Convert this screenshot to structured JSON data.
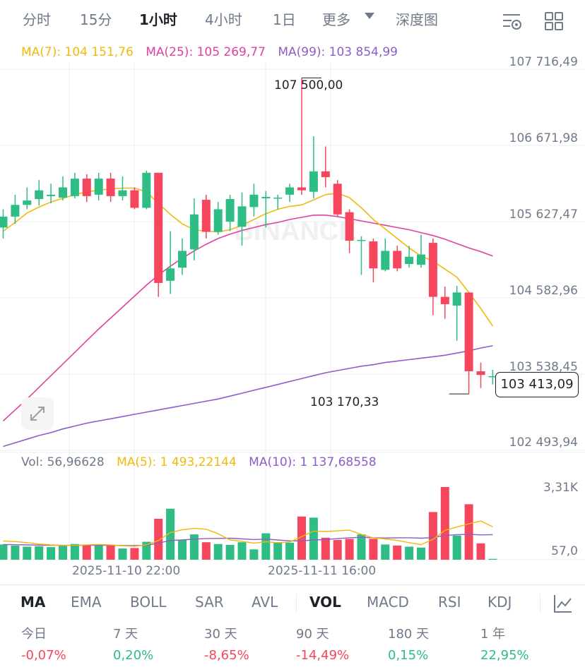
{
  "timeframes": [
    {
      "label": "分时",
      "active": false
    },
    {
      "label": "15分",
      "active": false
    },
    {
      "label": "1小时",
      "active": true
    },
    {
      "label": "4小时",
      "active": false
    },
    {
      "label": "1日",
      "active": false
    },
    {
      "label": "更多",
      "active": false
    },
    {
      "label": "深度图",
      "active": false
    }
  ],
  "colors": {
    "up": "#2ebd85",
    "down": "#f6465d",
    "ma7": "#f0b90b",
    "ma25": "#e040a0",
    "ma99": "#8e5cc8",
    "grid": "#eaecef",
    "muted": "#707a8a"
  },
  "ma_legend": {
    "ma7": "MA(7): 104 151,76",
    "ma25": "MA(25): 105 269,77",
    "ma99": "MA(99): 103 854,99"
  },
  "price_axis": [
    "107 716,49",
    "106 671,98",
    "105 627,47",
    "104 582,96",
    "103 538,45",
    "102 493,94"
  ],
  "current_price": "103 413,09",
  "high_label": "107 500,00",
  "low_label": "103 170,33",
  "watermark": "BINANCE",
  "vol_legend": {
    "vol": "Vol: 56,96628",
    "ma5": "MA(5): 1 493,22144",
    "ma10": "MA(10): 1 137,68558"
  },
  "vol_axis": [
    "3,31K",
    "57,0"
  ],
  "dates": [
    "2025-11-10 22:00",
    "2025-11-11 16:00"
  ],
  "indicators": [
    {
      "label": "MA",
      "active": true
    },
    {
      "label": "EMA",
      "active": false
    },
    {
      "label": "BOLL",
      "active": false
    },
    {
      "label": "SAR",
      "active": false
    },
    {
      "label": "AVL",
      "active": false
    },
    {
      "label": "VOL",
      "active": true
    },
    {
      "label": "MACD",
      "active": false
    },
    {
      "label": "RSI",
      "active": false
    },
    {
      "label": "KDJ",
      "active": false
    }
  ],
  "performance": [
    {
      "label": "今日",
      "value": "-0,07%",
      "up": false
    },
    {
      "label": "7 天",
      "value": "0,20%",
      "up": true
    },
    {
      "label": "30 天",
      "value": "-8,65%",
      "up": false
    },
    {
      "label": "90 天",
      "value": "-14,49%",
      "up": false
    },
    {
      "label": "180 天",
      "value": "0,15%",
      "up": true
    },
    {
      "label": "1 年",
      "value": "22,95%",
      "up": true
    }
  ],
  "chart_data": {
    "type": "candlestick",
    "price_range": [
      102493.94,
      107716.49
    ],
    "volume_range": [
      57.0,
      3310
    ],
    "candles": [
      {
        "o": 105450,
        "c": 105600,
        "h": 105700,
        "l": 105300,
        "v": 700
      },
      {
        "o": 105600,
        "c": 105760,
        "h": 105900,
        "l": 105500,
        "v": 650
      },
      {
        "o": 105760,
        "c": 105820,
        "h": 106000,
        "l": 105700,
        "v": 600
      },
      {
        "o": 105840,
        "c": 105960,
        "h": 106100,
        "l": 105750,
        "v": 620
      },
      {
        "o": 105880,
        "c": 105900,
        "h": 106050,
        "l": 105780,
        "v": 580
      },
      {
        "o": 105860,
        "c": 106000,
        "h": 106150,
        "l": 105820,
        "v": 640
      },
      {
        "o": 105880,
        "c": 106120,
        "h": 106200,
        "l": 105850,
        "v": 720
      },
      {
        "o": 106120,
        "c": 105880,
        "h": 106180,
        "l": 105800,
        "v": 680
      },
      {
        "o": 105900,
        "c": 106120,
        "h": 106200,
        "l": 105820,
        "v": 700
      },
      {
        "o": 106120,
        "c": 105880,
        "h": 106200,
        "l": 105800,
        "v": 660
      },
      {
        "o": 105880,
        "c": 105960,
        "h": 106150,
        "l": 105820,
        "v": 520
      },
      {
        "o": 105960,
        "c": 105720,
        "h": 106000,
        "l": 105700,
        "v": 540
      },
      {
        "o": 105720,
        "c": 106200,
        "h": 106230,
        "l": 105700,
        "v": 820
      },
      {
        "o": 106200,
        "c": 104690,
        "h": 106200,
        "l": 104500,
        "v": 1850
      },
      {
        "o": 104720,
        "c": 104890,
        "h": 105400,
        "l": 104540,
        "v": 2300
      },
      {
        "o": 104900,
        "c": 105130,
        "h": 105300,
        "l": 104800,
        "v": 900
      },
      {
        "o": 105150,
        "c": 105630,
        "h": 105850,
        "l": 105000,
        "v": 1150
      },
      {
        "o": 105830,
        "c": 105390,
        "h": 105900,
        "l": 105300,
        "v": 800
      },
      {
        "o": 105390,
        "c": 105700,
        "h": 105800,
        "l": 105350,
        "v": 720
      },
      {
        "o": 105530,
        "c": 105840,
        "h": 105900,
        "l": 105400,
        "v": 680
      },
      {
        "o": 105460,
        "c": 105740,
        "h": 105930,
        "l": 105200,
        "v": 800
      },
      {
        "o": 105730,
        "c": 105900,
        "h": 106050,
        "l": 105600,
        "v": 480
      },
      {
        "o": 105850,
        "c": 105870,
        "h": 105950,
        "l": 105450,
        "v": 1200
      },
      {
        "o": 105860,
        "c": 105860,
        "h": 105900,
        "l": 105700,
        "v": 800
      },
      {
        "o": 105900,
        "c": 106000,
        "h": 106050,
        "l": 105800,
        "v": 780
      },
      {
        "o": 106000,
        "c": 105960,
        "h": 107500,
        "l": 105900,
        "v": 1950
      },
      {
        "o": 105940,
        "c": 106220,
        "h": 106700,
        "l": 105850,
        "v": 1900
      },
      {
        "o": 106220,
        "c": 106140,
        "h": 106560,
        "l": 106000,
        "v": 1000
      },
      {
        "o": 106050,
        "c": 105630,
        "h": 106100,
        "l": 105600,
        "v": 900
      },
      {
        "o": 105660,
        "c": 105270,
        "h": 105700,
        "l": 105100,
        "v": 950
      },
      {
        "o": 105270,
        "c": 105280,
        "h": 105330,
        "l": 104800,
        "v": 1150
      },
      {
        "o": 105260,
        "c": 104890,
        "h": 105300,
        "l": 104700,
        "v": 950
      },
      {
        "o": 104870,
        "c": 105130,
        "h": 105300,
        "l": 104850,
        "v": 700
      },
      {
        "o": 105130,
        "c": 104890,
        "h": 105200,
        "l": 104850,
        "v": 650
      },
      {
        "o": 104950,
        "c": 105050,
        "h": 105200,
        "l": 104900,
        "v": 600
      },
      {
        "o": 104940,
        "c": 105080,
        "h": 105350,
        "l": 104900,
        "v": 560
      },
      {
        "o": 105240,
        "c": 104500,
        "h": 105300,
        "l": 104250,
        "v": 2150
      },
      {
        "o": 104500,
        "c": 104400,
        "h": 104640,
        "l": 104200,
        "v": 3270
      },
      {
        "o": 104380,
        "c": 104560,
        "h": 104650,
        "l": 103900,
        "v": 1100
      },
      {
        "o": 104560,
        "c": 103480,
        "h": 104560,
        "l": 103170,
        "v": 2500
      },
      {
        "o": 103480,
        "c": 103430,
        "h": 103600,
        "l": 103250,
        "v": 750
      },
      {
        "o": 103410,
        "c": 103413,
        "h": 103500,
        "l": 103300,
        "v": 57
      }
    ],
    "ma7": [
      105400,
      105520,
      105650,
      105730,
      105800,
      105850,
      105900,
      105940,
      105960,
      105980,
      105990,
      105990,
      105940,
      105780,
      105630,
      105500,
      105420,
      105400,
      105390,
      105420,
      105480,
      105560,
      105640,
      105700,
      105740,
      105760,
      105830,
      105900,
      105920,
      105860,
      105720,
      105560,
      105430,
      105300,
      105170,
      105060,
      104990,
      104880,
      104770,
      104560,
      104340,
      104100
    ],
    "ma25": [
      102800,
      102950,
      103100,
      103260,
      103420,
      103580,
      103740,
      103900,
      104060,
      104210,
      104360,
      104510,
      104660,
      104800,
      104920,
      105030,
      105130,
      105220,
      105300,
      105360,
      105410,
      105450,
      105490,
      105520,
      105560,
      105590,
      105620,
      105620,
      105600,
      105570,
      105540,
      105510,
      105480,
      105450,
      105420,
      105380,
      105340,
      105290,
      105230,
      105170,
      105120,
      105060
    ],
    "ma99": [
      102450,
      102500,
      102550,
      102600,
      102640,
      102690,
      102730,
      102770,
      102800,
      102830,
      102860,
      102890,
      102920,
      102950,
      102980,
      103010,
      103040,
      103070,
      103100,
      103140,
      103180,
      103220,
      103260,
      103300,
      103340,
      103380,
      103420,
      103460,
      103490,
      103520,
      103550,
      103570,
      103600,
      103620,
      103640,
      103660,
      103680,
      103700,
      103730,
      103760,
      103800,
      103830
    ],
    "vol_ma5": [
      850,
      830,
      780,
      720,
      680,
      660,
      660,
      680,
      700,
      680,
      640,
      620,
      680,
      880,
      1230,
      1360,
      1420,
      1380,
      1180,
      900,
      840,
      760,
      820,
      780,
      810,
      1050,
      1300,
      1280,
      1310,
      1340,
      1150,
      990,
      950,
      880,
      780,
      690,
      930,
      1330,
      1480,
      1620,
      1750,
      1490
    ],
    "vol_ma10": [
      700,
      690,
      680,
      670,
      660,
      660,
      660,
      660,
      660,
      660,
      650,
      650,
      660,
      760,
      880,
      900,
      940,
      960,
      970,
      980,
      950,
      920,
      940,
      900,
      860,
      860,
      900,
      920,
      960,
      1000,
      1020,
      1000,
      990,
      1000,
      1000,
      980,
      1010,
      1100,
      1140,
      1150,
      1130,
      1140
    ]
  }
}
